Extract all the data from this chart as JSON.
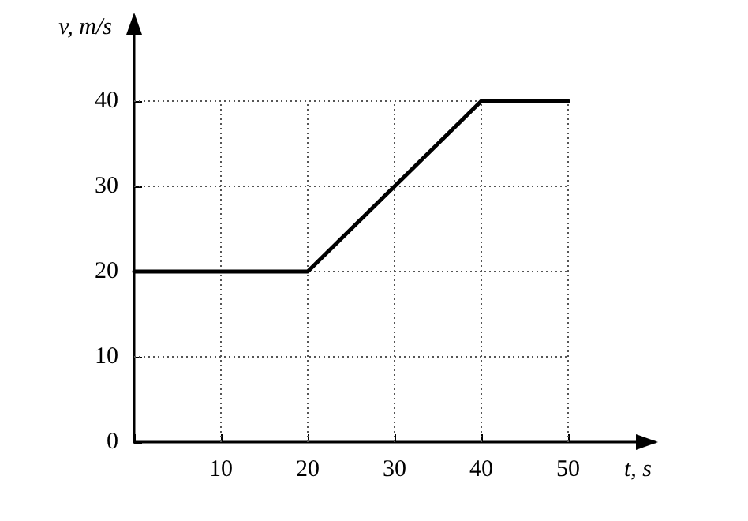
{
  "chart_data": {
    "type": "line",
    "xlabel": "t, s",
    "ylabel": "v, m/s",
    "x": [
      0,
      20,
      40,
      50
    ],
    "series": [
      {
        "color": "#000000",
        "values": [
          20,
          20,
          40,
          40
        ]
      }
    ],
    "xlim": [
      0,
      60
    ],
    "ylim": [
      0,
      50
    ],
    "xticks": [
      {
        "value": 0,
        "label": null
      },
      10,
      20,
      30,
      40,
      50
    ],
    "yticks": [
      0,
      10,
      20,
      30,
      40
    ],
    "grid": true,
    "marker": "none",
    "line_style": "solid"
  }
}
